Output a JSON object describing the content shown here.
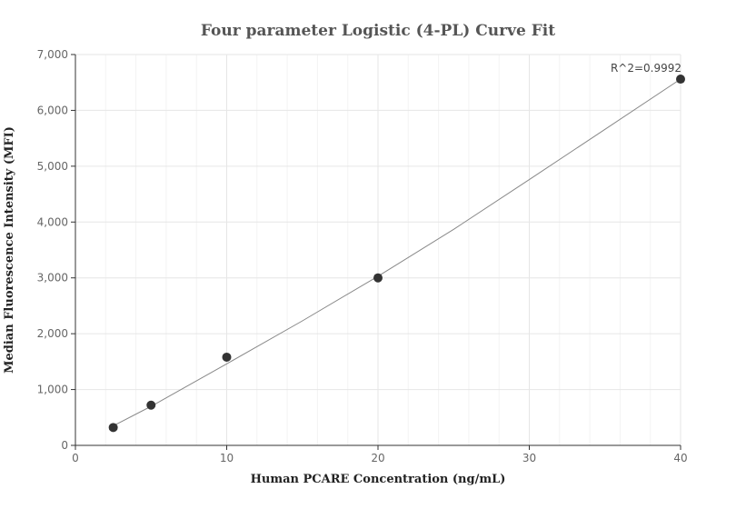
{
  "chart_data": {
    "type": "scatter",
    "title": "Four parameter Logistic (4-PL) Curve Fit",
    "xlabel": "Human PCARE Concentration (ng/mL)",
    "ylabel": "Median Fluorescence Intensity (MFI)",
    "xlim": [
      0,
      40
    ],
    "ylim": [
      0,
      7000
    ],
    "x_ticks": [
      0,
      10,
      20,
      30,
      40
    ],
    "y_ticks": [
      0,
      1000,
      2000,
      3000,
      4000,
      5000,
      6000,
      7000
    ],
    "x_tick_labels": [
      "0",
      "10",
      "20",
      "30",
      "40"
    ],
    "y_tick_labels": [
      "0",
      "1,000",
      "2,000",
      "3,000",
      "4,000",
      "5,000",
      "6,000",
      "7,000"
    ],
    "grid": true,
    "series": [
      {
        "x": [
          2.5,
          5,
          10,
          20,
          40
        ],
        "y": [
          320,
          720,
          1580,
          3000,
          6560
        ]
      }
    ],
    "fit_curve": {
      "x": [
        2.5,
        5,
        10,
        15,
        20,
        25,
        30,
        35,
        40
      ],
      "y": [
        350,
        700,
        1460,
        2230,
        3030,
        3870,
        4760,
        5660,
        6560
      ]
    },
    "annotation": "R^2=0.9992",
    "point_color": "#333333",
    "curve_color": "#888888",
    "grid_color": "#e6e6e6"
  }
}
